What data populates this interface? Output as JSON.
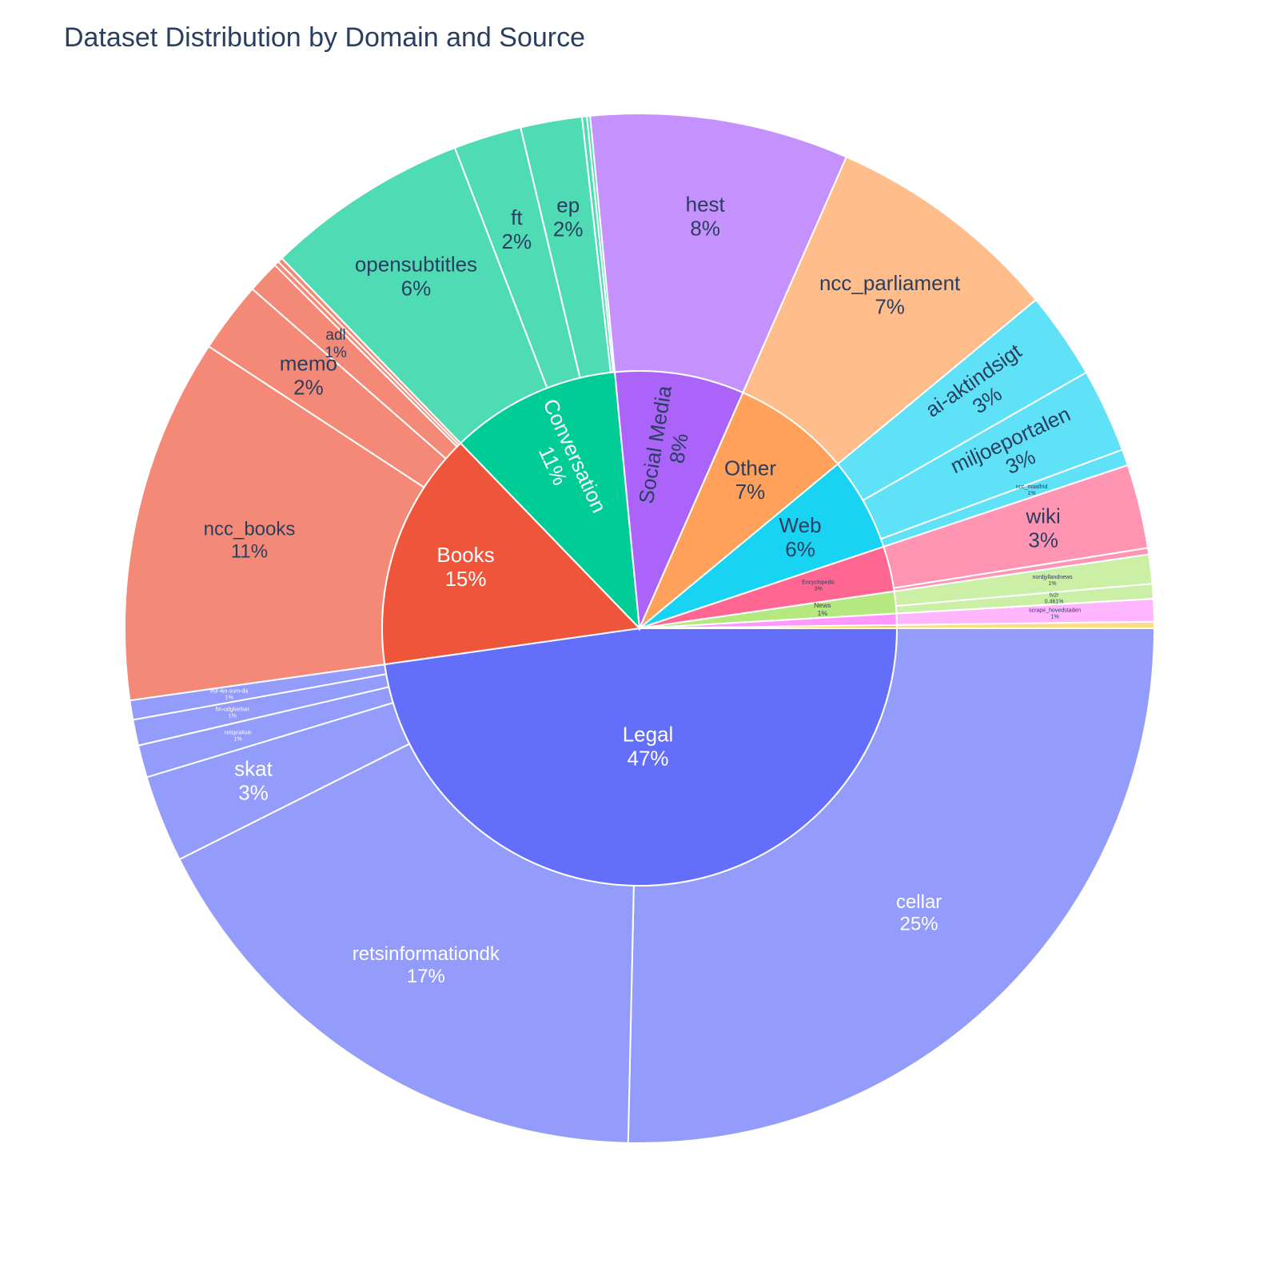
{
  "chart_data": {
    "type": "sunburst",
    "title": "Dataset Distribution by Domain and Source",
    "domains": [
      {
        "name": "Legal",
        "pct_label": "47%",
        "color": "#636EFA",
        "child_color": "#939BFB",
        "children": [
          {
            "name": "cellar",
            "value": 25.0,
            "pct_label": "25%"
          },
          {
            "name": "retsinformationdk",
            "value": 17.0,
            "pct_label": "17%"
          },
          {
            "name": "skat",
            "value": 2.7,
            "pct_label": "3%"
          },
          {
            "name": "retspraksis",
            "value": 1.0,
            "pct_label": "1%"
          },
          {
            "name": "fm-udgivelser",
            "value": 0.8,
            "pct_label": "1%"
          },
          {
            "name": "eur-lex-sum-da",
            "value": 0.6,
            "pct_label": "1%"
          }
        ]
      },
      {
        "name": "Books",
        "pct_label": "15%",
        "color": "#EF553B",
        "child_color": "#F38976",
        "children": [
          {
            "name": "ncc_books",
            "value": 11.3,
            "pct_label": "11%"
          },
          {
            "name": "memo",
            "value": 2.2,
            "pct_label": "2%"
          },
          {
            "name": "adl",
            "value": 1.0,
            "pct_label": "1%"
          },
          {
            "name": "",
            "value": 0.15,
            "pct_label": ""
          },
          {
            "name": "",
            "value": 0.15,
            "pct_label": ""
          }
        ]
      },
      {
        "name": "Conversation",
        "pct_label": "11%",
        "color": "#00CC96",
        "child_color": "#4FDBB4",
        "children": [
          {
            "name": "opensubtitles",
            "value": 6.3,
            "pct_label": "6%"
          },
          {
            "name": "ft",
            "value": 2.1,
            "pct_label": "2%"
          },
          {
            "name": "ep",
            "value": 1.9,
            "pct_label": "2%"
          },
          {
            "name": "",
            "value": 0.15,
            "pct_label": ""
          },
          {
            "name": "",
            "value": 0.1,
            "pct_label": ""
          }
        ]
      },
      {
        "name": "Social Media",
        "pct_label": "8%",
        "color": "#AB63FA",
        "child_color": "#C591FC",
        "children": [
          {
            "name": "hest",
            "value": 8.0,
            "pct_label": "8%"
          }
        ]
      },
      {
        "name": "Other",
        "pct_label": "7%",
        "color": "#FFA15A",
        "child_color": "#FFBD8C",
        "children": [
          {
            "name": "ncc_parliament",
            "value": 7.3,
            "pct_label": "7%"
          }
        ]
      },
      {
        "name": "Web",
        "pct_label": "6%",
        "color": "#19D3F3",
        "child_color": "#5FE1F7",
        "children": [
          {
            "name": "ai-aktindsigt",
            "value": 2.7,
            "pct_label": "3%"
          },
          {
            "name": "miljoeportalen",
            "value": 2.6,
            "pct_label": "3%"
          },
          {
            "name": "ncc_maalfrid",
            "value": 0.5,
            "pct_label": "1%"
          }
        ]
      },
      {
        "name": "Encyclopedic",
        "pct_label": "3%",
        "color": "#FF6692",
        "child_color": "#FF94B3",
        "children": [
          {
            "name": "wiki",
            "value": 2.6,
            "pct_label": "3%"
          },
          {
            "name": "",
            "value": 0.2,
            "pct_label": ""
          }
        ]
      },
      {
        "name": "News",
        "pct_label": "1%",
        "color": "#B6E880",
        "child_color": "#CCEFA6",
        "children": [
          {
            "name": "nordjyllandnews",
            "value": 0.9,
            "pct_label": "1%"
          },
          {
            "name": "tv2r",
            "value": 0.461,
            "pct_label": "0.461%"
          }
        ]
      },
      {
        "name": "",
        "pct_label": "",
        "color": "#FF97FF",
        "child_color": "#FFB6FF",
        "children": [
          {
            "name": "scrape_hovedstaden",
            "value": 0.7,
            "pct_label": "1%"
          }
        ]
      },
      {
        "name": "",
        "pct_label": "",
        "color": "#FECB52",
        "child_color": "#FEDB86",
        "children": [
          {
            "name": "",
            "value": 0.2,
            "pct_label": ""
          }
        ]
      }
    ]
  }
}
